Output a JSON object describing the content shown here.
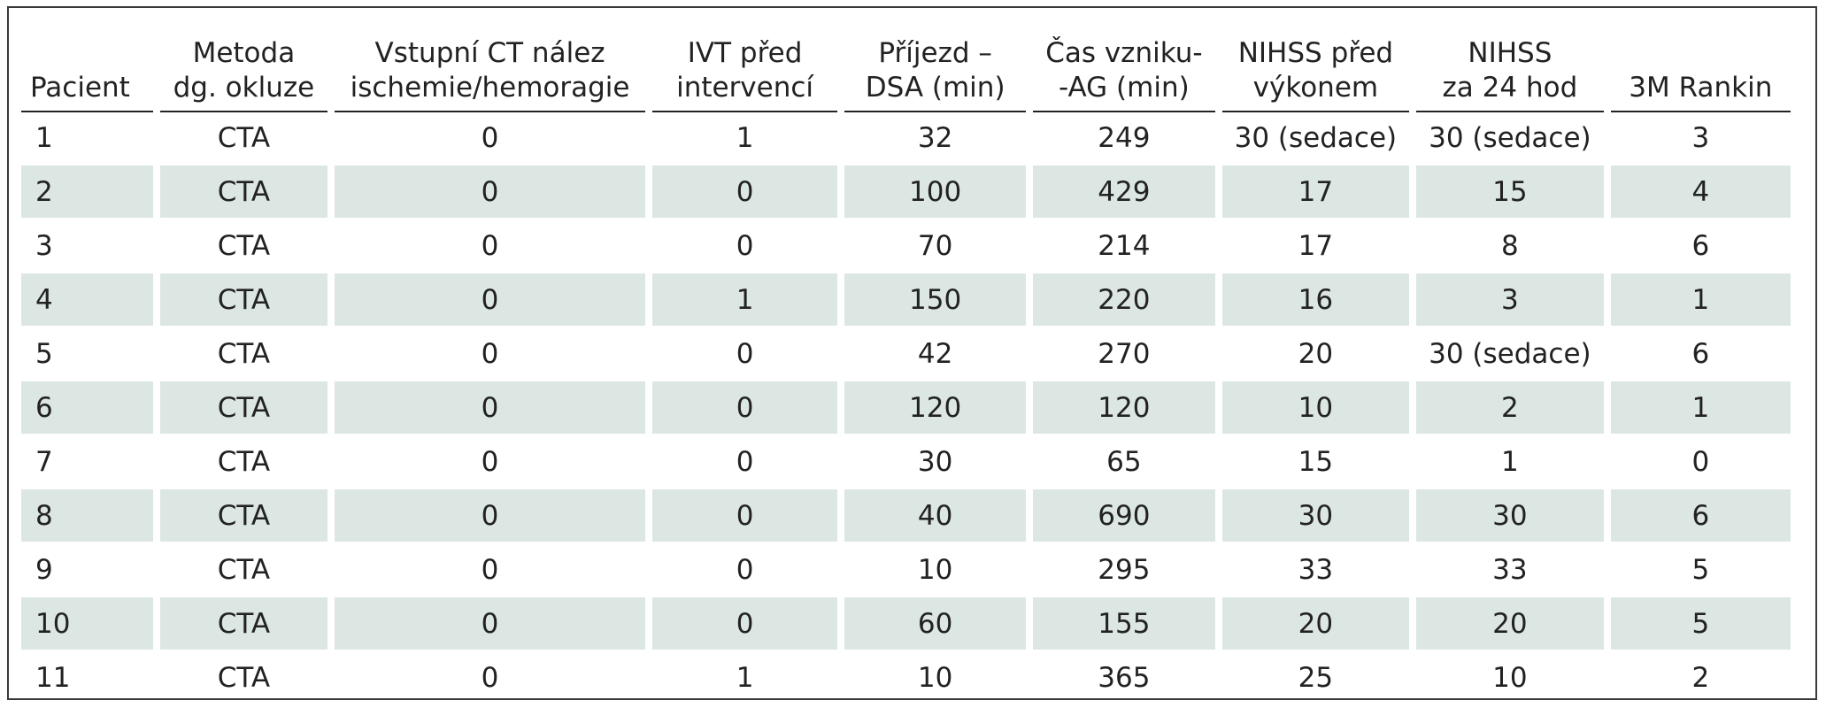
{
  "table": {
    "headers": [
      [
        "Pacient"
      ],
      [
        "Metoda",
        "dg. okluze"
      ],
      [
        "Vstupní CT nález",
        "ischemie/hemoragie"
      ],
      [
        "IVT před",
        "intervencí"
      ],
      [
        "Příjezd –",
        "DSA (min)"
      ],
      [
        "Čas vzniku-",
        "-AG (min)"
      ],
      [
        "NIHSS před",
        "výkonem"
      ],
      [
        "NIHSS",
        "za 24 hod"
      ],
      [
        "3M Rankin"
      ]
    ],
    "rows": [
      [
        "1",
        "CTA",
        "0",
        "1",
        "32",
        "249",
        "30 (sedace)",
        "30 (sedace)",
        "3"
      ],
      [
        "2",
        "CTA",
        "0",
        "0",
        "100",
        "429",
        "17",
        "15",
        "4"
      ],
      [
        "3",
        "CTA",
        "0",
        "0",
        "70",
        "214",
        "17",
        "8",
        "6"
      ],
      [
        "4",
        "CTA",
        "0",
        "1",
        "150",
        "220",
        "16",
        "3",
        "1"
      ],
      [
        "5",
        "CTA",
        "0",
        "0",
        "42",
        "270",
        "20",
        "30 (sedace)",
        "6"
      ],
      [
        "6",
        "CTA",
        "0",
        "0",
        "120",
        "120",
        "10",
        "2",
        "1"
      ],
      [
        "7",
        "CTA",
        "0",
        "0",
        "30",
        "65",
        "15",
        "1",
        "0"
      ],
      [
        "8",
        "CTA",
        "0",
        "0",
        "40",
        "690",
        "30",
        "30",
        "6"
      ],
      [
        "9",
        "CTA",
        "0",
        "0",
        "10",
        "295",
        "33",
        "33",
        "5"
      ],
      [
        "10",
        "CTA",
        "0",
        "0",
        "60",
        "155",
        "20",
        "20",
        "5"
      ],
      [
        "11",
        "CTA",
        "0",
        "1",
        "10",
        "365",
        "25",
        "10",
        "2"
      ]
    ]
  },
  "colors": {
    "shaded_row": "#dce7e4",
    "text": "#222222",
    "border": "#3a3a3a"
  }
}
